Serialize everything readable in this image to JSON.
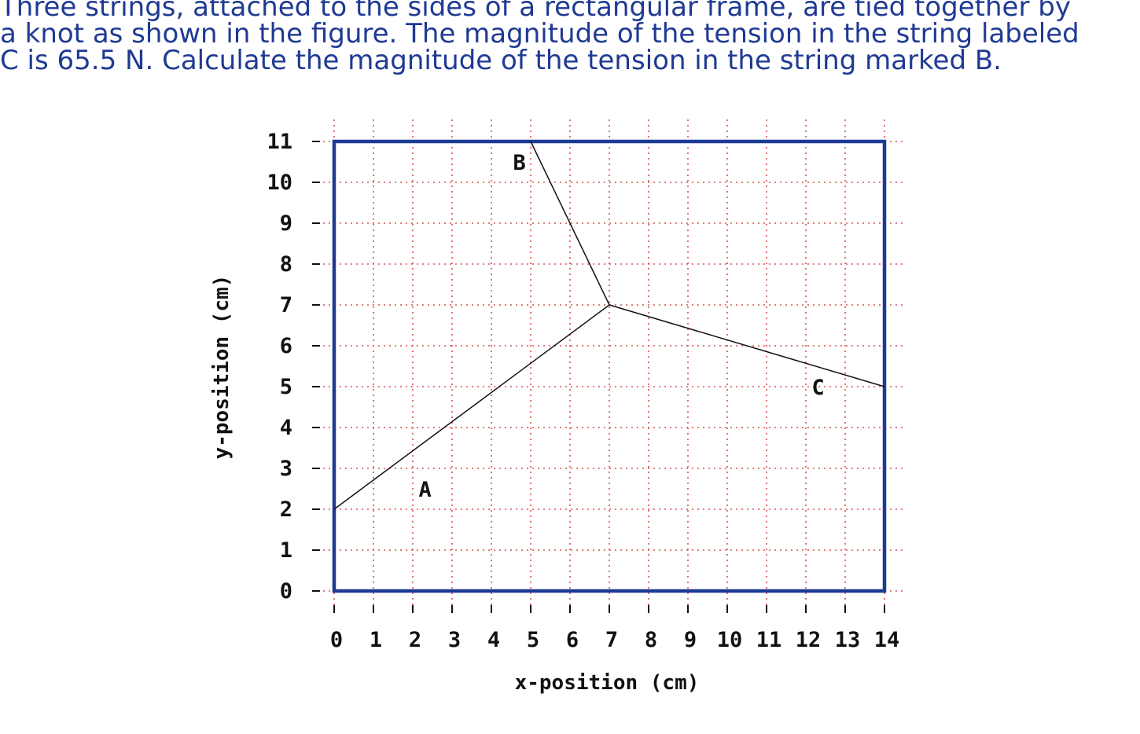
{
  "question": {
    "lines": [
      "Three strings, attached to the sides of a rectangular frame, are tied together by",
      "a knot as shown in the figure. The magnitude of the tension in the string labeled",
      "C is 65.5 N. Calculate the magnitude of the tension in the string marked B."
    ],
    "color": "#1f3a93"
  },
  "figure": {
    "xlabel": "x-position (cm)",
    "ylabel": "y-position (cm)",
    "x_ticks": [
      "0",
      "1",
      "2",
      "3",
      "4",
      "5",
      "6",
      "7",
      "8",
      "9",
      "10",
      "11",
      "12",
      "13",
      "14"
    ],
    "y_ticks": [
      "0",
      "1",
      "2",
      "3",
      "4",
      "5",
      "6",
      "7",
      "8",
      "9",
      "10",
      "11"
    ],
    "frame": {
      "x": [
        0,
        14
      ],
      "y": [
        0,
        11
      ],
      "color": "#1f3a93"
    },
    "grid_color": "#d9534f",
    "knot": {
      "x": 7,
      "y": 7
    },
    "strings": [
      {
        "name": "A",
        "end": {
          "x": 0,
          "y": 2
        },
        "label_at": {
          "x": 2.15,
          "y": 2.5
        }
      },
      {
        "name": "B",
        "end": {
          "x": 5,
          "y": 11
        },
        "label_at": {
          "x": 4.55,
          "y": 10.5
        }
      },
      {
        "name": "C",
        "end": {
          "x": 14,
          "y": 5
        },
        "label_at": {
          "x": 12.15,
          "y": 5
        }
      }
    ]
  }
}
